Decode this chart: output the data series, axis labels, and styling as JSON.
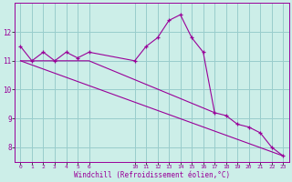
{
  "xlabel": "Windchill (Refroidissement éolien,°C)",
  "bg_color": "#cceee8",
  "line_color": "#990099",
  "grid_color": "#99cccc",
  "hours": [
    0,
    1,
    2,
    3,
    4,
    5,
    6,
    10,
    11,
    12,
    13,
    14,
    15,
    16,
    17,
    18,
    19,
    20,
    21,
    22,
    23
  ],
  "windchill": [
    11.5,
    11.0,
    11.3,
    11.0,
    11.3,
    11.1,
    11.3,
    11.0,
    11.5,
    11.8,
    12.4,
    12.6,
    11.8,
    11.3,
    9.2,
    9.1,
    8.8,
    8.7,
    8.5,
    8.0,
    7.7
  ],
  "trend_x": [
    0,
    23
  ],
  "trend_y": [
    11.0,
    7.7
  ],
  "trend2_x": [
    0,
    6,
    17
  ],
  "trend2_y": [
    11.0,
    11.0,
    9.2
  ],
  "ylim": [
    7.5,
    13.0
  ],
  "yticks": [
    8,
    9,
    10,
    11,
    12
  ],
  "xtick_positions": [
    0,
    1,
    2,
    3,
    4,
    5,
    6,
    10,
    11,
    12,
    13,
    14,
    15,
    16,
    17,
    18,
    19,
    20,
    21,
    22,
    23
  ],
  "xtick_labels": [
    "0",
    "1",
    "2",
    "3",
    "4",
    "5",
    "6",
    "10",
    "11",
    "12",
    "13",
    "14",
    "15",
    "16",
    "17",
    "18",
    "19",
    "20",
    "21",
    "22",
    "23"
  ]
}
